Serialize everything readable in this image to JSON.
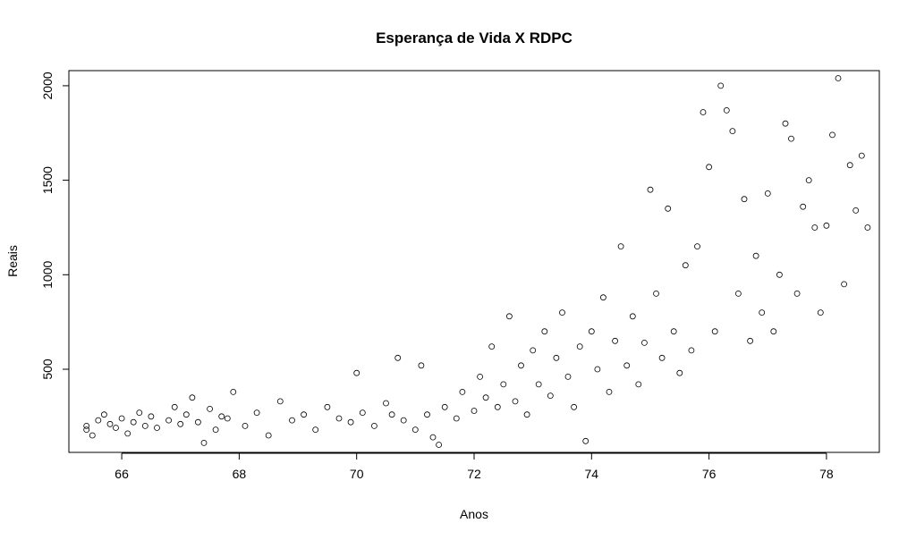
{
  "chart_data": {
    "type": "scatter",
    "title": "Esperança de Vida X RDPC",
    "xlabel": "Anos",
    "ylabel": "Reais",
    "xlim": [
      65.1,
      78.9
    ],
    "ylim": [
      60,
      2080
    ],
    "x_ticks": [
      66,
      68,
      70,
      72,
      74,
      76,
      78
    ],
    "y_ticks": [
      500,
      1000,
      1500,
      2000
    ],
    "marker": "open-circle",
    "grid": false,
    "legend": "none",
    "series": [
      {
        "points": [
          [
            65.4,
            200
          ],
          [
            65.4,
            180
          ],
          [
            65.5,
            150
          ],
          [
            65.6,
            230
          ],
          [
            65.7,
            260
          ],
          [
            65.8,
            210
          ],
          [
            65.9,
            190
          ],
          [
            66.0,
            240
          ],
          [
            66.1,
            160
          ],
          [
            66.2,
            220
          ],
          [
            66.3,
            270
          ],
          [
            66.4,
            200
          ],
          [
            66.5,
            250
          ],
          [
            66.6,
            190
          ],
          [
            66.8,
            230
          ],
          [
            66.9,
            300
          ],
          [
            67.0,
            210
          ],
          [
            67.1,
            260
          ],
          [
            67.2,
            350
          ],
          [
            67.3,
            220
          ],
          [
            67.4,
            110
          ],
          [
            67.5,
            290
          ],
          [
            67.6,
            180
          ],
          [
            67.7,
            250
          ],
          [
            67.8,
            240
          ],
          [
            67.9,
            380
          ],
          [
            68.1,
            200
          ],
          [
            68.3,
            270
          ],
          [
            68.5,
            150
          ],
          [
            68.7,
            330
          ],
          [
            68.9,
            230
          ],
          [
            69.1,
            260
          ],
          [
            69.3,
            180
          ],
          [
            69.5,
            300
          ],
          [
            69.7,
            240
          ],
          [
            69.9,
            220
          ],
          [
            70.0,
            480
          ],
          [
            70.1,
            270
          ],
          [
            70.3,
            200
          ],
          [
            70.5,
            320
          ],
          [
            70.6,
            260
          ],
          [
            70.7,
            560
          ],
          [
            70.8,
            230
          ],
          [
            71.0,
            180
          ],
          [
            71.1,
            520
          ],
          [
            71.2,
            260
          ],
          [
            71.3,
            140
          ],
          [
            71.4,
            100
          ],
          [
            71.5,
            300
          ],
          [
            71.7,
            240
          ],
          [
            71.8,
            380
          ],
          [
            72.0,
            280
          ],
          [
            72.1,
            460
          ],
          [
            72.2,
            350
          ],
          [
            72.3,
            620
          ],
          [
            72.4,
            300
          ],
          [
            72.5,
            420
          ],
          [
            72.6,
            780
          ],
          [
            72.7,
            330
          ],
          [
            72.8,
            520
          ],
          [
            72.9,
            260
          ],
          [
            73.0,
            600
          ],
          [
            73.1,
            420
          ],
          [
            73.2,
            700
          ],
          [
            73.3,
            360
          ],
          [
            73.4,
            560
          ],
          [
            73.5,
            800
          ],
          [
            73.6,
            460
          ],
          [
            73.7,
            300
          ],
          [
            73.8,
            620
          ],
          [
            73.9,
            120
          ],
          [
            74.0,
            700
          ],
          [
            74.1,
            500
          ],
          [
            74.2,
            880
          ],
          [
            74.3,
            380
          ],
          [
            74.4,
            650
          ],
          [
            74.5,
            1150
          ],
          [
            74.6,
            520
          ],
          [
            74.7,
            780
          ],
          [
            74.8,
            420
          ],
          [
            74.9,
            640
          ],
          [
            75.0,
            1450
          ],
          [
            75.1,
            900
          ],
          [
            75.2,
            560
          ],
          [
            75.3,
            1350
          ],
          [
            75.4,
            700
          ],
          [
            75.5,
            480
          ],
          [
            75.6,
            1050
          ],
          [
            75.7,
            600
          ],
          [
            75.8,
            1150
          ],
          [
            75.9,
            1860
          ],
          [
            76.0,
            1570
          ],
          [
            76.1,
            700
          ],
          [
            76.2,
            2000
          ],
          [
            76.3,
            1870
          ],
          [
            76.4,
            1760
          ],
          [
            76.5,
            900
          ],
          [
            76.6,
            1400
          ],
          [
            76.7,
            650
          ],
          [
            76.8,
            1100
          ],
          [
            76.9,
            800
          ],
          [
            77.0,
            1430
          ],
          [
            77.1,
            700
          ],
          [
            77.2,
            1000
          ],
          [
            77.3,
            1800
          ],
          [
            77.4,
            1720
          ],
          [
            77.5,
            900
          ],
          [
            77.6,
            1360
          ],
          [
            77.7,
            1500
          ],
          [
            77.8,
            1250
          ],
          [
            77.9,
            800
          ],
          [
            78.0,
            1260
          ],
          [
            78.1,
            1740
          ],
          [
            78.2,
            2040
          ],
          [
            78.3,
            950
          ],
          [
            78.4,
            1580
          ],
          [
            78.5,
            1340
          ],
          [
            78.6,
            1630
          ],
          [
            78.7,
            1250
          ]
        ]
      }
    ]
  }
}
